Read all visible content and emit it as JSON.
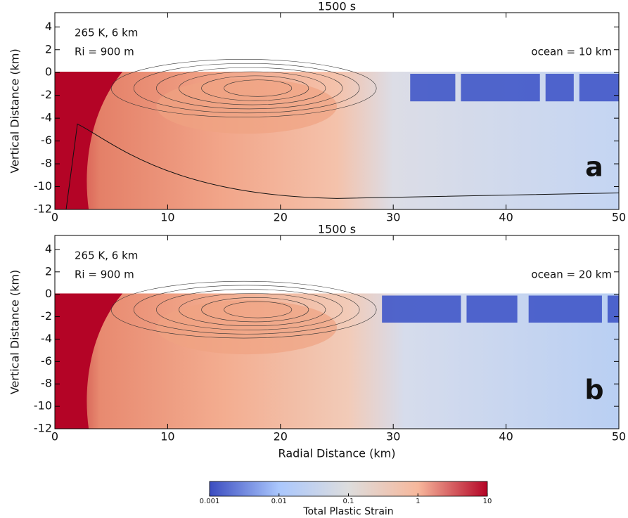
{
  "chart_data": [
    {
      "type": "heatmap",
      "title": "1500 s",
      "y_label": "Vertical Distance (km)",
      "annotations": [
        "265 K, 6 km",
        "Ri = 900 m",
        "ocean = 10 km"
      ],
      "panel_label": "a",
      "xlim": [
        0,
        50
      ],
      "ylim": [
        -12,
        5.25
      ],
      "xticks": [
        0,
        10,
        20,
        30,
        40,
        50
      ],
      "yticks": [
        -12,
        -10,
        -8,
        -6,
        -4,
        -2,
        0,
        2,
        4
      ]
    },
    {
      "type": "heatmap",
      "title": "1500 s",
      "y_label": "Vertical Distance (km)",
      "x_label": "Radial Distance (km)",
      "annotations": [
        "265 K, 6 km",
        "Ri = 900 m",
        "ocean = 20 km"
      ],
      "panel_label": "b",
      "xlim": [
        0,
        50
      ],
      "ylim": [
        -12,
        5.25
      ],
      "xticks": [
        0,
        10,
        20,
        30,
        40,
        50
      ],
      "yticks": [
        -12,
        -10,
        -8,
        -6,
        -4,
        -2,
        0,
        2,
        4
      ]
    },
    {
      "type": "colorbar",
      "label": "Total Plastic Strain",
      "log_scale": true,
      "xlim": [
        0.001,
        10
      ],
      "xticks": [
        0.001,
        0.01,
        0.1,
        1,
        10
      ],
      "colors": [
        "#3b4cc0",
        "#aac7fd",
        "#dddddd",
        "#f7b89c",
        "#b40426"
      ]
    }
  ]
}
